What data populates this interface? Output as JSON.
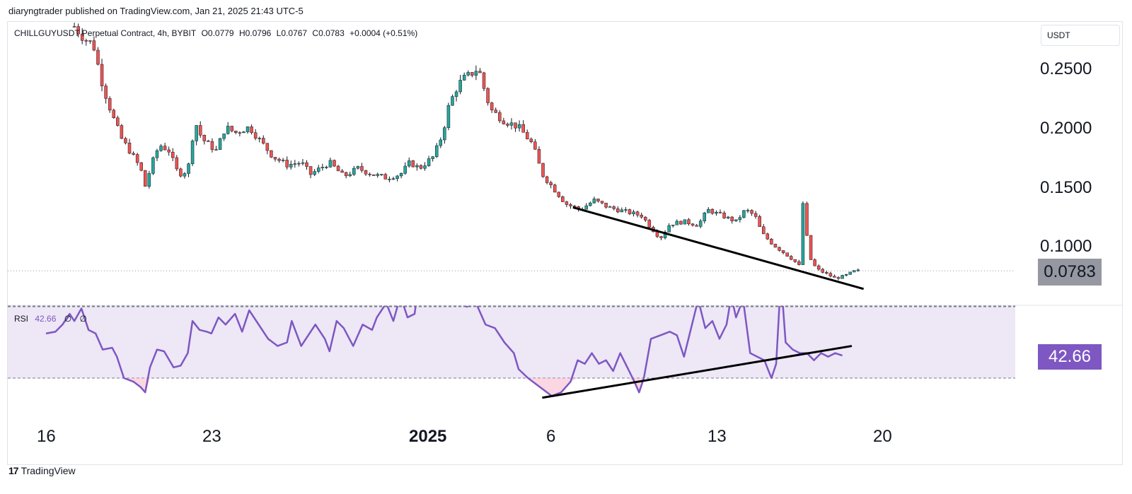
{
  "header": {
    "text": "diaryngtrader published on TradingView.com, Jan 21, 2025 21:43 UTC-5"
  },
  "legend": {
    "symbol": "CHILLGUYUSDT Perpetual Contract, 4h, BYBIT",
    "open": "O0.0779",
    "high": "H0.0796",
    "low": "L0.0767",
    "close": "C0.0783",
    "change": "+0.0004 (+0.51%)"
  },
  "currency_button": "USDT",
  "price_tag": "0.0783",
  "rsi": {
    "label": "RSI",
    "value": "42.66",
    "na1": "∅",
    "na2": "∅",
    "tag": "42.66"
  },
  "footer": {
    "logo": "17",
    "brand": "TradingView"
  },
  "colors": {
    "up": "#26a69a",
    "down": "#ef5350",
    "rsi_line": "#7e57c2",
    "rsi_band": "#ede7f6",
    "trendline": "#000000",
    "price_tag": "#9598a1"
  },
  "chart_data": [
    {
      "type": "candlestick",
      "title": "CHILLGUYUSDT Perpetual Contract, 4h, BYBIT",
      "timeframe": "4h",
      "x_tick_labels": [
        "16",
        "23",
        "2025",
        "6",
        "13",
        "20"
      ],
      "y_tick_labels": [
        "0.2500",
        "0.2000",
        "0.1500",
        "0.1000"
      ],
      "y_range": [
        0.045,
        0.3
      ],
      "last_price": 0.0783,
      "path": [
        {
          "t": 17.2,
          "p": 0.285
        },
        {
          "t": 17.6,
          "p": 0.275
        },
        {
          "t": 18.0,
          "p": 0.27
        },
        {
          "t": 18.4,
          "p": 0.235
        },
        {
          "t": 18.8,
          "p": 0.21
        },
        {
          "t": 19.2,
          "p": 0.19
        },
        {
          "t": 19.6,
          "p": 0.178
        },
        {
          "t": 20.0,
          "p": 0.165
        },
        {
          "t": 20.2,
          "p": 0.15
        },
        {
          "t": 20.5,
          "p": 0.17
        },
        {
          "t": 20.8,
          "p": 0.185
        },
        {
          "t": 21.2,
          "p": 0.18
        },
        {
          "t": 21.6,
          "p": 0.16
        },
        {
          "t": 22.0,
          "p": 0.163
        },
        {
          "t": 22.3,
          "p": 0.205
        },
        {
          "t": 22.6,
          "p": 0.19
        },
        {
          "t": 23.2,
          "p": 0.18
        },
        {
          "t": 23.6,
          "p": 0.2
        },
        {
          "t": 24.0,
          "p": 0.195
        },
        {
          "t": 24.6,
          "p": 0.2
        },
        {
          "t": 25.0,
          "p": 0.19
        },
        {
          "t": 25.6,
          "p": 0.175
        },
        {
          "t": 26.2,
          "p": 0.168
        },
        {
          "t": 26.8,
          "p": 0.17
        },
        {
          "t": 27.2,
          "p": 0.16
        },
        {
          "t": 27.6,
          "p": 0.165
        },
        {
          "t": 28.0,
          "p": 0.17
        },
        {
          "t": 28.6,
          "p": 0.158
        },
        {
          "t": 29.2,
          "p": 0.165
        },
        {
          "t": 29.8,
          "p": 0.16
        },
        {
          "t": 30.4,
          "p": 0.157
        },
        {
          "t": 31.0,
          "p": 0.16
        },
        {
          "t": 31.4,
          "p": 0.17
        },
        {
          "t": 31.8,
          "p": 0.165
        },
        {
          "t": 32.4,
          "p": 0.175
        },
        {
          "t": 32.8,
          "p": 0.195
        },
        {
          "t": 33.0,
          "p": 0.215
        },
        {
          "t": 33.3,
          "p": 0.23
        },
        {
          "t": 33.6,
          "p": 0.24
        },
        {
          "t": 34.0,
          "p": 0.245
        },
        {
          "t": 34.3,
          "p": 0.25
        },
        {
          "t": 34.5,
          "p": 0.235
        },
        {
          "t": 34.8,
          "p": 0.215
        },
        {
          "t": 35.4,
          "p": 0.205
        },
        {
          "t": 36.0,
          "p": 0.2
        },
        {
          "t": 36.6,
          "p": 0.185
        },
        {
          "t": 37.0,
          "p": 0.16
        },
        {
          "t": 37.6,
          "p": 0.145
        },
        {
          "t": 38.0,
          "p": 0.135
        },
        {
          "t": 38.6,
          "p": 0.13
        },
        {
          "t": 39.2,
          "p": 0.138
        },
        {
          "t": 39.8,
          "p": 0.132
        },
        {
          "t": 40.6,
          "p": 0.128
        },
        {
          "t": 41.2,
          "p": 0.125
        },
        {
          "t": 41.6,
          "p": 0.115
        },
        {
          "t": 42.0,
          "p": 0.106
        },
        {
          "t": 42.4,
          "p": 0.118
        },
        {
          "t": 43.0,
          "p": 0.12
        },
        {
          "t": 43.6,
          "p": 0.117
        },
        {
          "t": 44.0,
          "p": 0.13
        },
        {
          "t": 44.6,
          "p": 0.125
        },
        {
          "t": 45.2,
          "p": 0.12
        },
        {
          "t": 45.6,
          "p": 0.13
        },
        {
          "t": 46.0,
          "p": 0.125
        },
        {
          "t": 46.3,
          "p": 0.11
        },
        {
          "t": 46.8,
          "p": 0.1
        },
        {
          "t": 47.2,
          "p": 0.094
        },
        {
          "t": 47.6,
          "p": 0.088
        },
        {
          "t": 47.9,
          "p": 0.082
        },
        {
          "t": 48.0,
          "p": 0.141
        },
        {
          "t": 48.3,
          "p": 0.09
        },
        {
          "t": 48.6,
          "p": 0.08
        },
        {
          "t": 49.0,
          "p": 0.076
        },
        {
          "t": 49.4,
          "p": 0.072
        },
        {
          "t": 49.8,
          "p": 0.074
        },
        {
          "t": 50.2,
          "p": 0.078
        },
        {
          "t": 50.4,
          "p": 0.0783
        }
      ],
      "trendline": {
        "from": {
          "t": 38.3,
          "p": 0.132
        },
        "to": {
          "t": 50.6,
          "p": 0.063
        }
      }
    },
    {
      "type": "line",
      "title": "RSI",
      "series": [
        {
          "values": [
            {
              "t": 16.0,
              "v": 55
            },
            {
              "t": 16.4,
              "v": 56
            },
            {
              "t": 16.7,
              "v": 60
            },
            {
              "t": 17.0,
              "v": 66
            },
            {
              "t": 17.2,
              "v": 62
            },
            {
              "t": 17.5,
              "v": 69
            },
            {
              "t": 17.8,
              "v": 57
            },
            {
              "t": 18.1,
              "v": 55
            },
            {
              "t": 18.4,
              "v": 46
            },
            {
              "t": 18.8,
              "v": 47
            },
            {
              "t": 19.0,
              "v": 42
            },
            {
              "t": 19.3,
              "v": 30
            },
            {
              "t": 19.7,
              "v": 28
            },
            {
              "t": 20.0,
              "v": 25
            },
            {
              "t": 20.2,
              "v": 22
            },
            {
              "t": 20.4,
              "v": 36
            },
            {
              "t": 20.7,
              "v": 46
            },
            {
              "t": 21.0,
              "v": 45
            },
            {
              "t": 21.4,
              "v": 36
            },
            {
              "t": 21.7,
              "v": 37
            },
            {
              "t": 22.0,
              "v": 44
            },
            {
              "t": 22.2,
              "v": 62
            },
            {
              "t": 22.5,
              "v": 57
            },
            {
              "t": 22.8,
              "v": 56
            },
            {
              "t": 23.0,
              "v": 55
            },
            {
              "t": 23.3,
              "v": 64
            },
            {
              "t": 23.6,
              "v": 60
            },
            {
              "t": 24.0,
              "v": 66
            },
            {
              "t": 24.3,
              "v": 56
            },
            {
              "t": 24.6,
              "v": 68
            },
            {
              "t": 25.0,
              "v": 60
            },
            {
              "t": 25.4,
              "v": 52
            },
            {
              "t": 25.8,
              "v": 48
            },
            {
              "t": 26.2,
              "v": 50
            },
            {
              "t": 26.4,
              "v": 62
            },
            {
              "t": 26.8,
              "v": 48
            },
            {
              "t": 27.0,
              "v": 52
            },
            {
              "t": 27.4,
              "v": 60
            },
            {
              "t": 27.8,
              "v": 52
            },
            {
              "t": 28.0,
              "v": 45
            },
            {
              "t": 28.3,
              "v": 62
            },
            {
              "t": 28.6,
              "v": 58
            },
            {
              "t": 29.0,
              "v": 48
            },
            {
              "t": 29.4,
              "v": 60
            },
            {
              "t": 29.8,
              "v": 57
            },
            {
              "t": 30.0,
              "v": 64
            },
            {
              "t": 30.4,
              "v": 72
            },
            {
              "t": 30.7,
              "v": 62
            },
            {
              "t": 31.0,
              "v": 76
            },
            {
              "t": 31.3,
              "v": 64
            },
            {
              "t": 31.6,
              "v": 66
            },
            {
              "t": 31.8,
              "v": 86
            },
            {
              "t": 32.0,
              "v": 74
            },
            {
              "t": 32.3,
              "v": 96
            },
            {
              "t": 32.6,
              "v": 100
            },
            {
              "t": 32.9,
              "v": 100
            },
            {
              "t": 33.1,
              "v": 90
            },
            {
              "t": 33.4,
              "v": 82
            },
            {
              "t": 33.8,
              "v": 70
            },
            {
              "t": 34.2,
              "v": 72
            },
            {
              "t": 34.6,
              "v": 60
            },
            {
              "t": 35.0,
              "v": 58
            },
            {
              "t": 35.4,
              "v": 50
            },
            {
              "t": 35.8,
              "v": 44
            },
            {
              "t": 36.0,
              "v": 35
            },
            {
              "t": 36.4,
              "v": 30
            },
            {
              "t": 36.8,
              "v": 26
            },
            {
              "t": 37.0,
              "v": 24
            },
            {
              "t": 37.4,
              "v": 20
            },
            {
              "t": 37.8,
              "v": 22
            },
            {
              "t": 38.2,
              "v": 28
            },
            {
              "t": 38.5,
              "v": 40
            },
            {
              "t": 38.8,
              "v": 38
            },
            {
              "t": 39.1,
              "v": 44
            },
            {
              "t": 39.4,
              "v": 38
            },
            {
              "t": 39.7,
              "v": 40
            },
            {
              "t": 40.0,
              "v": 34
            },
            {
              "t": 40.3,
              "v": 44
            },
            {
              "t": 40.6,
              "v": 36
            },
            {
              "t": 40.9,
              "v": 28
            },
            {
              "t": 41.1,
              "v": 22
            },
            {
              "t": 41.3,
              "v": 30
            },
            {
              "t": 41.6,
              "v": 52
            },
            {
              "t": 42.0,
              "v": 54
            },
            {
              "t": 42.4,
              "v": 56
            },
            {
              "t": 42.7,
              "v": 54
            },
            {
              "t": 43.0,
              "v": 42
            },
            {
              "t": 43.3,
              "v": 58
            },
            {
              "t": 43.6,
              "v": 74
            },
            {
              "t": 43.9,
              "v": 58
            },
            {
              "t": 44.2,
              "v": 62
            },
            {
              "t": 44.5,
              "v": 52
            },
            {
              "t": 44.8,
              "v": 60
            },
            {
              "t": 45.0,
              "v": 76
            },
            {
              "t": 45.2,
              "v": 64
            },
            {
              "t": 45.5,
              "v": 74
            },
            {
              "t": 45.8,
              "v": 44
            },
            {
              "t": 46.1,
              "v": 42
            },
            {
              "t": 46.4,
              "v": 40
            },
            {
              "t": 46.7,
              "v": 30
            },
            {
              "t": 46.9,
              "v": 38
            },
            {
              "t": 47.1,
              "v": 86
            },
            {
              "t": 47.3,
              "v": 50
            },
            {
              "t": 47.6,
              "v": 46
            },
            {
              "t": 47.9,
              "v": 44
            },
            {
              "t": 48.2,
              "v": 44
            },
            {
              "t": 48.5,
              "v": 40
            },
            {
              "t": 48.8,
              "v": 44
            },
            {
              "t": 49.1,
              "v": 42
            },
            {
              "t": 49.4,
              "v": 44
            },
            {
              "t": 49.7,
              "v": 42.66
            }
          ]
        }
      ],
      "levels": [
        70,
        30
      ],
      "last_value": 42.66,
      "trendline": {
        "from": {
          "t": 37.0,
          "v": 19
        },
        "to": {
          "t": 50.1,
          "v": 48
        }
      }
    }
  ]
}
